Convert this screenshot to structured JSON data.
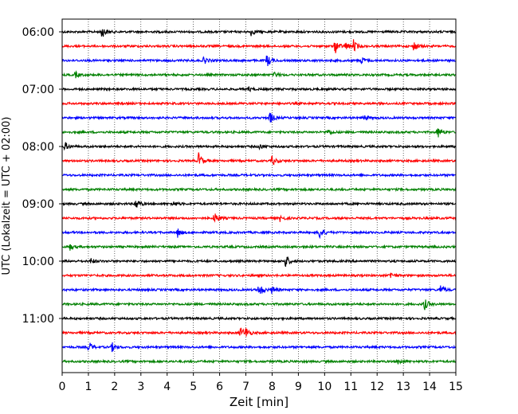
{
  "chart_data": {
    "type": "line",
    "title": "",
    "xlabel": "Zeit  [min]",
    "ylabel": "UTC (Lokalzeit = UTC + 02:00)",
    "xlim": [
      0,
      15
    ],
    "x_ticks": [
      "0",
      "1",
      "2",
      "3",
      "4",
      "5",
      "6",
      "7",
      "8",
      "9",
      "10",
      "11",
      "12",
      "13",
      "14",
      "15"
    ],
    "y_tick_labels": [
      "06:00",
      "07:00",
      "08:00",
      "09:00",
      "10:00",
      "11:00"
    ],
    "grid": "vertical dotted",
    "trace_colors": [
      "#000000",
      "#ff0000",
      "#0000ff",
      "#008000"
    ],
    "series": [
      {
        "start": "06:00",
        "events": [
          [
            1.5,
            0.9
          ],
          [
            7.2,
            0.5
          ]
        ]
      },
      {
        "start": "06:15",
        "events": [
          [
            10.4,
            1.0
          ],
          [
            10.8,
            0.5
          ],
          [
            11.1,
            0.8
          ],
          [
            13.4,
            0.7
          ]
        ]
      },
      {
        "start": "06:30",
        "events": [
          [
            5.4,
            0.5
          ],
          [
            7.8,
            0.9
          ],
          [
            11.4,
            0.5
          ]
        ]
      },
      {
        "start": "06:45",
        "events": [
          [
            0.5,
            0.4
          ],
          [
            8.1,
            0.4
          ]
        ]
      },
      {
        "start": "07:00",
        "events": [
          [
            7.1,
            0.3
          ]
        ]
      },
      {
        "start": "07:15",
        "events": []
      },
      {
        "start": "07:30",
        "events": [
          [
            7.9,
            0.9
          ],
          [
            11.5,
            0.4
          ]
        ]
      },
      {
        "start": "07:45",
        "events": [
          [
            10.1,
            0.5
          ],
          [
            14.3,
            0.8
          ]
        ]
      },
      {
        "start": "08:00",
        "events": [
          [
            0.1,
            0.6
          ],
          [
            7.5,
            0.4
          ]
        ]
      },
      {
        "start": "08:15",
        "events": [
          [
            5.2,
            1.1
          ],
          [
            8.0,
            0.7
          ]
        ]
      },
      {
        "start": "08:30",
        "events": []
      },
      {
        "start": "08:45",
        "events": []
      },
      {
        "start": "09:00",
        "events": [
          [
            2.8,
            0.9
          ],
          [
            4.2,
            0.4
          ]
        ]
      },
      {
        "start": "09:15",
        "events": [
          [
            5.8,
            0.9
          ],
          [
            8.3,
            0.4
          ]
        ]
      },
      {
        "start": "09:30",
        "events": [
          [
            4.4,
            0.6
          ],
          [
            9.8,
            1.0
          ]
        ]
      },
      {
        "start": "09:45",
        "events": [
          [
            0.3,
            0.4
          ]
        ]
      },
      {
        "start": "10:00",
        "events": [
          [
            1.1,
            0.4
          ],
          [
            8.5,
            1.0
          ]
        ]
      },
      {
        "start": "10:15",
        "events": [
          [
            12.5,
            0.5
          ]
        ]
      },
      {
        "start": "10:30",
        "events": [
          [
            7.5,
            1.1
          ],
          [
            8.0,
            0.6
          ],
          [
            14.4,
            0.7
          ]
        ]
      },
      {
        "start": "10:45",
        "events": [
          [
            13.8,
            0.8
          ]
        ]
      },
      {
        "start": "11:00",
        "events": []
      },
      {
        "start": "11:15",
        "events": [
          [
            6.8,
            0.8
          ],
          [
            7.0,
            0.6
          ]
        ]
      },
      {
        "start": "11:30",
        "events": [
          [
            1.0,
            0.8
          ],
          [
            1.9,
            0.6
          ]
        ]
      },
      {
        "start": "11:45",
        "events": [
          [
            12.8,
            0.4
          ]
        ]
      }
    ]
  }
}
